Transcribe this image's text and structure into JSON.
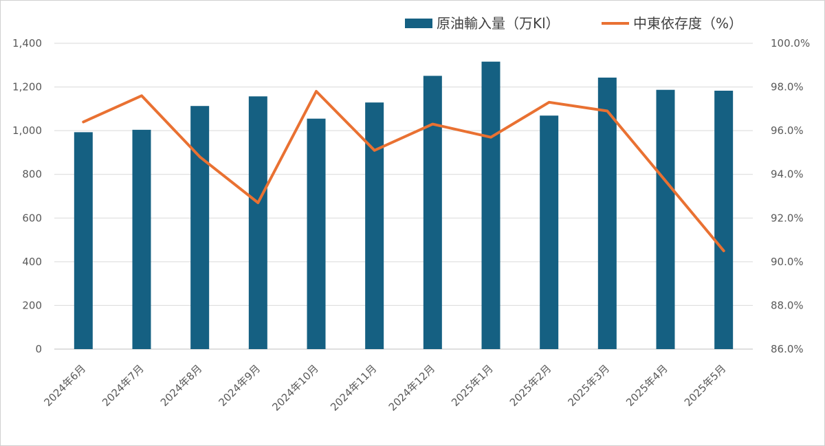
{
  "chart_data": {
    "type": "bar",
    "categories": [
      "2024年6月",
      "2024年7月",
      "2024年8月",
      "2024年9月",
      "2024年10月",
      "2024年11月",
      "2024年12月",
      "2025年1月",
      "2025年2月",
      "2025年3月",
      "2025年4月",
      "2025年5月"
    ],
    "series": [
      {
        "name": "原油輸入量（万Kl）",
        "type": "bar",
        "axis": "left",
        "color": "#156082",
        "values": [
          993,
          1004,
          1113,
          1157,
          1055,
          1129,
          1251,
          1316,
          1069,
          1243,
          1187,
          1183
        ]
      },
      {
        "name": "中東依存度（%）",
        "type": "line",
        "axis": "right",
        "color": "#E97132",
        "values": [
          96.4,
          97.6,
          94.8,
          92.7,
          97.8,
          95.1,
          96.3,
          95.7,
          97.3,
          96.9,
          93.7,
          90.5
        ]
      }
    ],
    "y_left": {
      "min": 0,
      "max": 1400,
      "ticks": [
        "0",
        "200",
        "400",
        "600",
        "800",
        "1,000",
        "1,200",
        "1,400"
      ]
    },
    "y_right": {
      "min": 86,
      "max": 100,
      "ticks": [
        "86.0%",
        "88.0%",
        "90.0%",
        "92.0%",
        "94.0%",
        "96.0%",
        "98.0%",
        "100.0%"
      ]
    },
    "grid": true,
    "legend_position": "top-right",
    "title": "",
    "xlabel": "",
    "ylabel": ""
  }
}
